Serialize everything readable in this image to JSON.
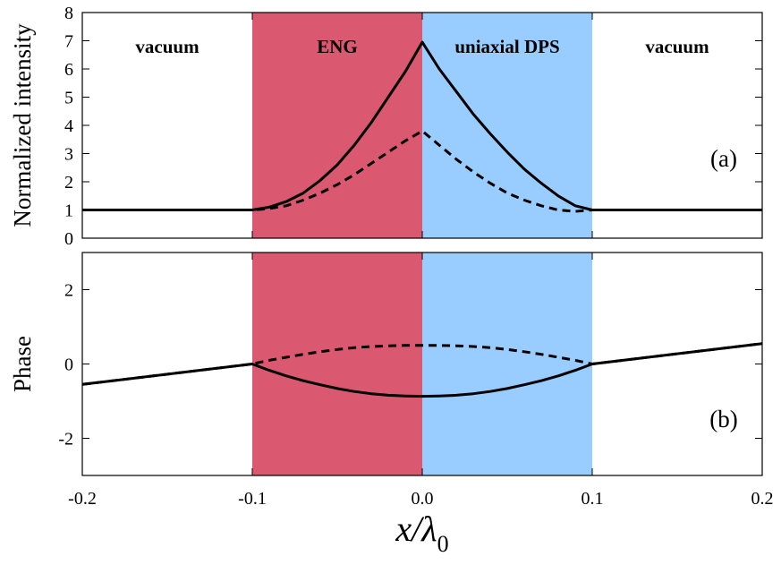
{
  "chart_data": [
    {
      "type": "line",
      "panel_label": "(a)",
      "xlabel": "x/λ0",
      "ylabel": "Normalized intensity",
      "xlim": [
        -0.2,
        0.2
      ],
      "ylim": [
        0,
        8
      ],
      "x_ticks": [
        "-0.2",
        "-0.1",
        "0.0",
        "0.1",
        "0.2"
      ],
      "y_ticks": [
        "0",
        "1",
        "2",
        "3",
        "4",
        "5",
        "6",
        "7",
        "8"
      ],
      "regions": [
        {
          "label": "vacuum",
          "x": [
            -0.2,
            -0.1
          ],
          "color": ""
        },
        {
          "label": "ENG",
          "x": [
            -0.1,
            0.0
          ],
          "color": "#da5870"
        },
        {
          "label": "uniaxial DPS",
          "x": [
            0.0,
            0.1
          ],
          "color": "#99ccff"
        },
        {
          "label": "vacuum",
          "x": [
            0.1,
            0.2
          ],
          "color": ""
        }
      ],
      "series": [
        {
          "style": "solid",
          "x": [
            -0.2,
            -0.1,
            -0.09,
            -0.08,
            -0.07,
            -0.06,
            -0.05,
            -0.04,
            -0.03,
            -0.02,
            -0.01,
            0.0,
            0.01,
            0.02,
            0.03,
            0.04,
            0.05,
            0.06,
            0.07,
            0.08,
            0.09,
            0.1,
            0.2
          ],
          "y": [
            1,
            1,
            1.1,
            1.3,
            1.6,
            2.05,
            2.6,
            3.3,
            4.1,
            5.0,
            5.9,
            6.95,
            6.0,
            5.2,
            4.4,
            3.7,
            3.05,
            2.45,
            1.95,
            1.5,
            1.15,
            1,
            1
          ]
        },
        {
          "style": "dashed",
          "x": [
            -0.2,
            -0.1,
            -0.09,
            -0.08,
            -0.07,
            -0.06,
            -0.05,
            -0.04,
            -0.03,
            -0.02,
            -0.01,
            0.0,
            0.01,
            0.02,
            0.03,
            0.04,
            0.05,
            0.06,
            0.07,
            0.08,
            0.09,
            0.1,
            0.2
          ],
          "y": [
            1,
            1,
            1.05,
            1.15,
            1.35,
            1.6,
            1.9,
            2.25,
            2.65,
            3.05,
            3.45,
            3.8,
            3.3,
            2.8,
            2.35,
            1.95,
            1.6,
            1.35,
            1.15,
            1.0,
            0.95,
            1,
            1
          ]
        }
      ]
    },
    {
      "type": "line",
      "panel_label": "(b)",
      "xlabel": "x/λ0",
      "ylabel": "Phase",
      "xlim": [
        -0.2,
        0.2
      ],
      "ylim": [
        -3,
        3
      ],
      "x_ticks": [
        "-0.2",
        "-0.1",
        "0.0",
        "0.1",
        "0.2"
      ],
      "y_ticks": [
        "-2",
        "0",
        "2"
      ],
      "y_tick_values": [
        -2,
        0,
        2
      ],
      "series": [
        {
          "style": "solid",
          "x": [
            -0.2,
            -0.1,
            -0.09,
            -0.08,
            -0.07,
            -0.06,
            -0.05,
            -0.04,
            -0.03,
            -0.02,
            -0.01,
            0.0,
            0.01,
            0.02,
            0.03,
            0.04,
            0.05,
            0.06,
            0.07,
            0.08,
            0.09,
            0.1,
            0.2
          ],
          "y": [
            -0.55,
            0,
            -0.17,
            -0.32,
            -0.45,
            -0.56,
            -0.66,
            -0.74,
            -0.8,
            -0.84,
            -0.86,
            -0.87,
            -0.86,
            -0.84,
            -0.8,
            -0.74,
            -0.66,
            -0.56,
            -0.45,
            -0.32,
            -0.17,
            0,
            0.55
          ]
        },
        {
          "style": "dashed",
          "x": [
            -0.2,
            -0.1,
            -0.09,
            -0.08,
            -0.07,
            -0.06,
            -0.05,
            -0.04,
            -0.03,
            -0.02,
            -0.01,
            0.0,
            0.01,
            0.02,
            0.03,
            0.04,
            0.05,
            0.06,
            0.07,
            0.08,
            0.09,
            0.1,
            0.2
          ],
          "y": [
            -0.55,
            0,
            0.1,
            0.18,
            0.26,
            0.33,
            0.39,
            0.44,
            0.47,
            0.49,
            0.5,
            0.5,
            0.5,
            0.49,
            0.47,
            0.44,
            0.39,
            0.33,
            0.26,
            0.18,
            0.1,
            0,
            0.55
          ]
        }
      ]
    }
  ]
}
